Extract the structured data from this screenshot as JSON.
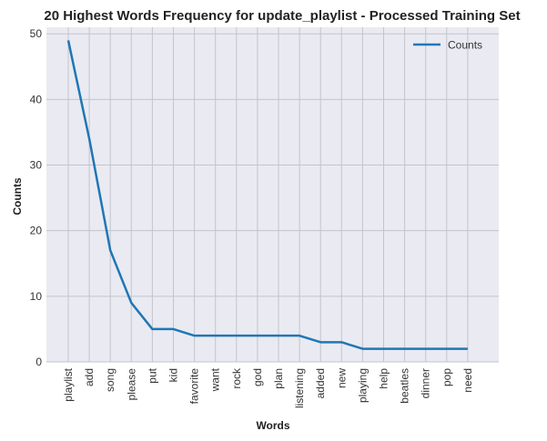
{
  "chart_data": {
    "type": "line",
    "title": "20 Highest Words Frequency for update_playlist - Processed Training Set",
    "xlabel": "Words",
    "ylabel": "Counts",
    "categories": [
      "playlist",
      "add",
      "song",
      "please",
      "put",
      "kid",
      "favorite",
      "want",
      "rock",
      "god",
      "plan",
      "listening",
      "added",
      "new",
      "playing",
      "help",
      "beatles",
      "dinner",
      "pop",
      "need"
    ],
    "series": [
      {
        "name": "Counts",
        "values": [
          49,
          34,
          17,
          9,
          5,
          5,
          4,
          4,
          4,
          4,
          4,
          4,
          3,
          3,
          2,
          2,
          2,
          2,
          2,
          2
        ]
      }
    ],
    "ylim": [
      0,
      51
    ],
    "yticks": [
      0,
      10,
      20,
      30,
      40,
      50
    ],
    "grid": true,
    "legend_position": "top-right",
    "line_color": "#1f77b4",
    "background_color": "#eaeaf2",
    "grid_color": "#c4c4cc"
  }
}
